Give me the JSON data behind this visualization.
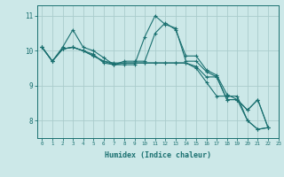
{
  "title": "",
  "xlabel": "Humidex (Indice chaleur)",
  "ylabel": "",
  "background_color": "#cce8e8",
  "grid_color": "#aacccc",
  "line_color": "#1a7070",
  "xlim": [
    -0.5,
    23
  ],
  "ylim": [
    7.5,
    11.3
  ],
  "yticks": [
    8,
    9,
    10,
    11
  ],
  "xticks": [
    0,
    1,
    2,
    3,
    4,
    5,
    6,
    7,
    8,
    9,
    10,
    11,
    12,
    13,
    14,
    15,
    16,
    17,
    18,
    19,
    20,
    21,
    22,
    23
  ],
  "series": [
    [
      10.1,
      9.7,
      10.1,
      10.6,
      10.1,
      10.0,
      9.8,
      9.6,
      9.7,
      9.7,
      9.7,
      10.5,
      10.8,
      10.6,
      9.85,
      9.85,
      9.45,
      9.3,
      8.75,
      8.6,
      8.0,
      7.75,
      7.8
    ],
    [
      10.1,
      9.7,
      10.05,
      10.1,
      10.0,
      9.9,
      9.65,
      9.6,
      9.65,
      9.65,
      9.65,
      9.65,
      9.65,
      9.65,
      9.65,
      9.5,
      9.1,
      8.7,
      8.7,
      8.7,
      8.0,
      7.75,
      7.8
    ],
    [
      10.1,
      9.7,
      10.05,
      10.1,
      10.0,
      9.85,
      9.7,
      9.65,
      9.65,
      9.65,
      9.65,
      9.65,
      9.65,
      9.65,
      9.65,
      9.55,
      9.25,
      9.25,
      8.6,
      8.6,
      8.3,
      8.6,
      7.8
    ],
    [
      10.1,
      9.7,
      10.05,
      10.1,
      10.0,
      9.85,
      9.7,
      9.6,
      9.6,
      9.6,
      10.4,
      11.0,
      10.75,
      10.65,
      9.7,
      9.7,
      9.4,
      9.25,
      8.6,
      8.6,
      8.3,
      8.6,
      7.8
    ]
  ]
}
